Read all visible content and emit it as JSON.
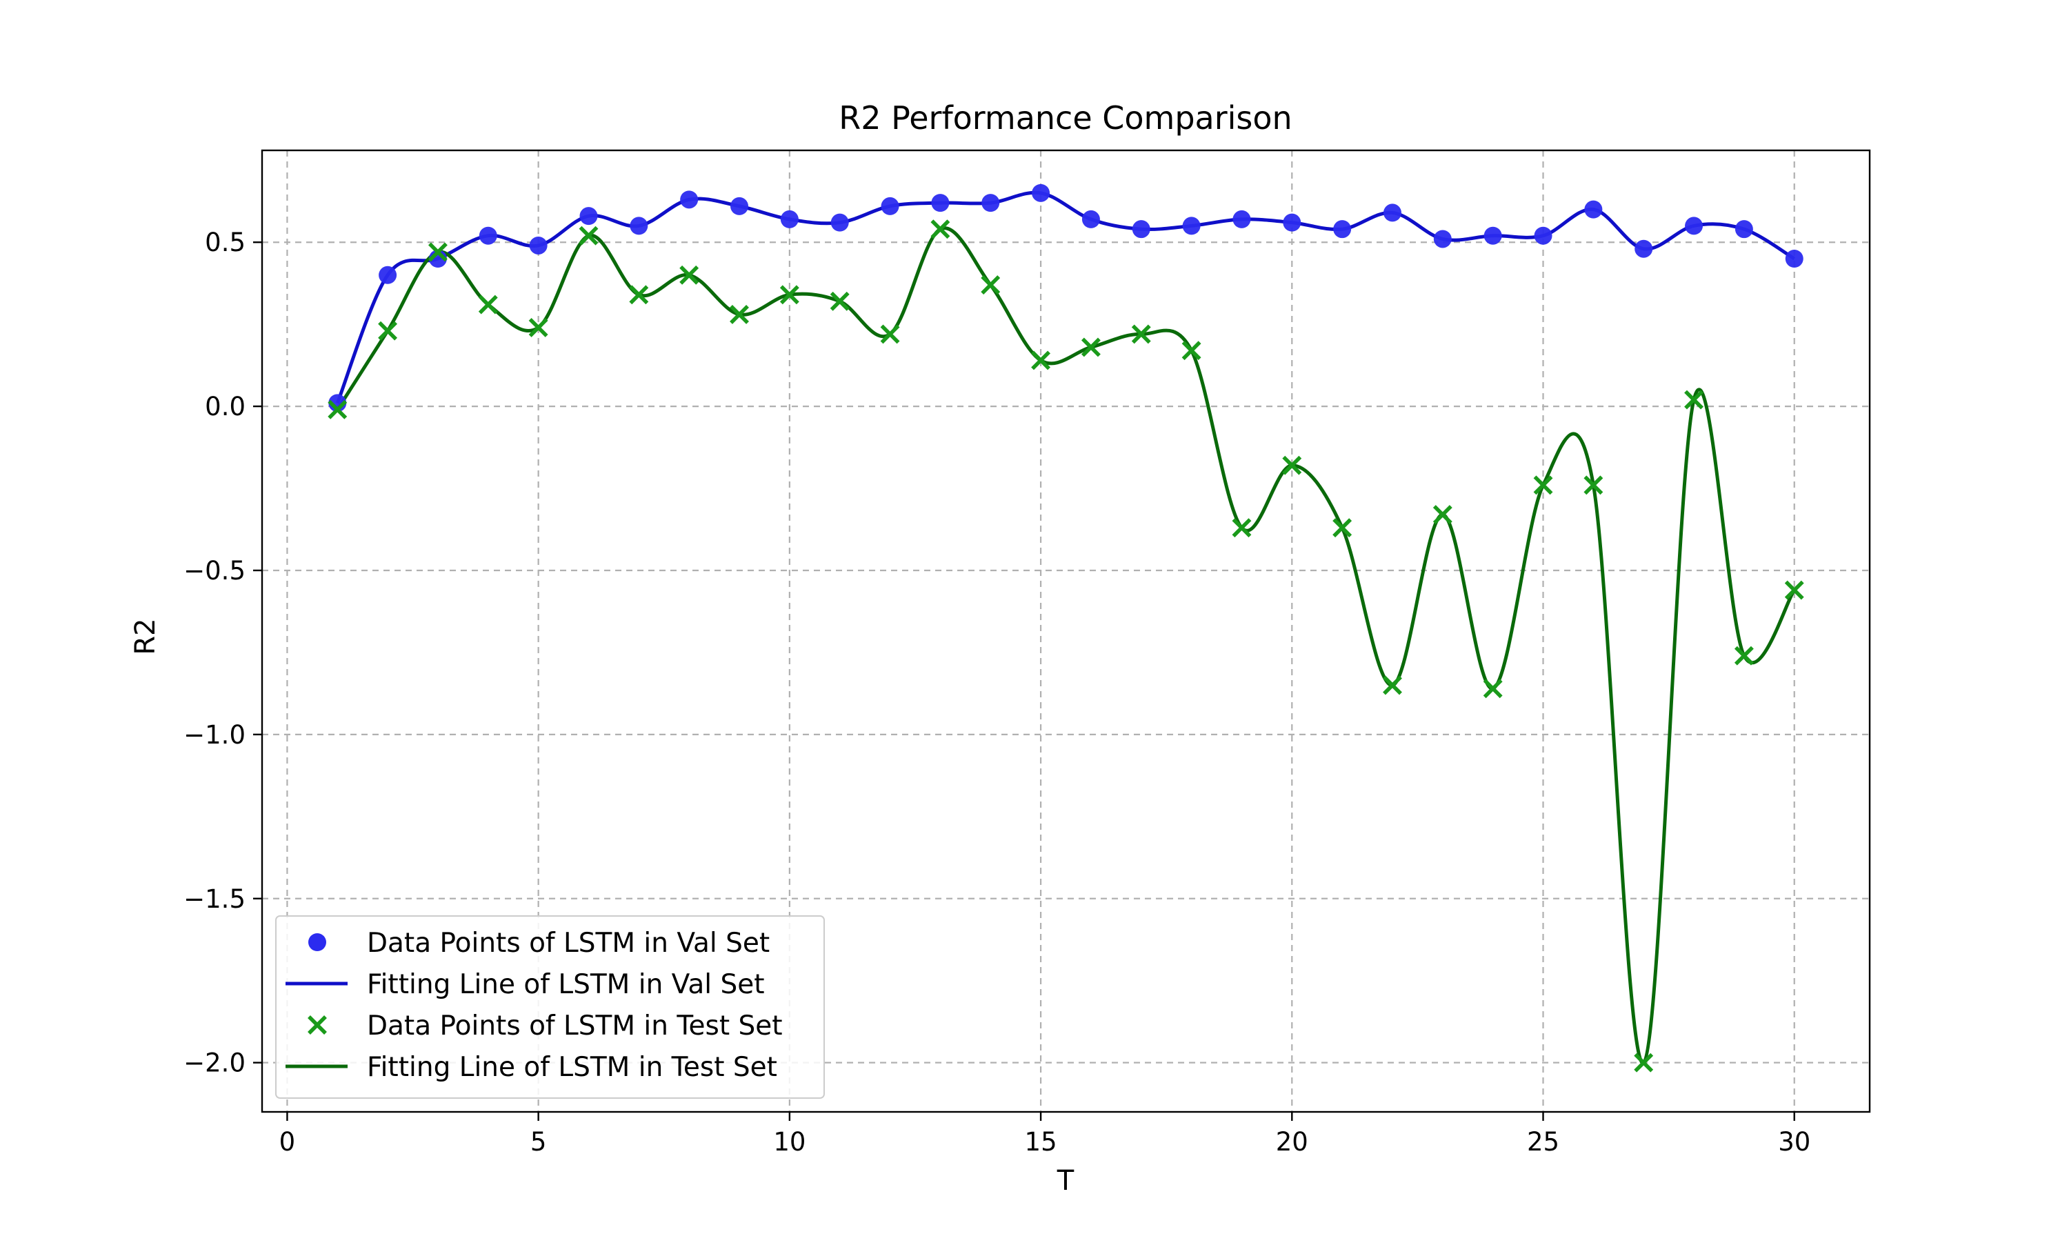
{
  "chart_data": {
    "type": "line",
    "title": "R2 Performance Comparison",
    "xlabel": "T",
    "ylabel": "R2",
    "xlim": [
      -0.5,
      31.5
    ],
    "ylim": [
      -2.15,
      0.78
    ],
    "xticks": [
      0,
      5,
      10,
      15,
      20,
      25,
      30
    ],
    "xtick_labels": [
      "0",
      "5",
      "10",
      "15",
      "20",
      "25",
      "30"
    ],
    "yticks": [
      0.5,
      0.0,
      -0.5,
      -1.0,
      -1.5,
      -2.0
    ],
    "ytick_labels": [
      "0.5",
      "0.0",
      "−0.5",
      "−1.0",
      "−1.5",
      "−2.0"
    ],
    "grid": true,
    "legend_position": "lower-left",
    "x": [
      1,
      2,
      3,
      4,
      5,
      6,
      7,
      8,
      9,
      10,
      11,
      12,
      13,
      14,
      15,
      16,
      17,
      18,
      19,
      20,
      21,
      22,
      23,
      24,
      25,
      26,
      27,
      28,
      29,
      30
    ],
    "series": [
      {
        "name": "Data Points of LSTM in Val Set",
        "kind": "scatter",
        "marker": "circle",
        "color": "#2b2bef",
        "values": [
          0.01,
          0.4,
          0.45,
          0.52,
          0.49,
          0.58,
          0.55,
          0.63,
          0.61,
          0.57,
          0.56,
          0.61,
          0.62,
          0.62,
          0.65,
          0.57,
          0.54,
          0.55,
          0.57,
          0.56,
          0.54,
          0.59,
          0.51,
          0.52,
          0.52,
          0.6,
          0.48,
          0.55,
          0.54,
          0.45
        ]
      },
      {
        "name": "Fitting Line of LSTM in Val Set",
        "kind": "line",
        "color": "#0f0fc8",
        "values": [
          0.01,
          0.4,
          0.45,
          0.52,
          0.49,
          0.58,
          0.55,
          0.63,
          0.61,
          0.57,
          0.56,
          0.61,
          0.62,
          0.62,
          0.65,
          0.57,
          0.54,
          0.55,
          0.57,
          0.56,
          0.54,
          0.59,
          0.51,
          0.52,
          0.52,
          0.6,
          0.48,
          0.55,
          0.54,
          0.45
        ]
      },
      {
        "name": "Data Points of LSTM in Test Set",
        "kind": "scatter",
        "marker": "x",
        "color": "#1a9a1a",
        "values": [
          -0.01,
          0.23,
          0.47,
          0.31,
          0.24,
          0.52,
          0.34,
          0.4,
          0.28,
          0.34,
          0.32,
          0.22,
          0.54,
          0.37,
          0.14,
          0.18,
          0.22,
          0.17,
          -0.37,
          -0.18,
          -0.37,
          -0.85,
          -0.33,
          -0.86,
          -0.24,
          -0.24,
          -2.0,
          0.02,
          -0.76,
          -0.56
        ]
      },
      {
        "name": "Fitting Line of LSTM in Test Set",
        "kind": "line",
        "color": "#0a6a0a",
        "values": [
          -0.01,
          0.23,
          0.47,
          0.31,
          0.24,
          0.52,
          0.34,
          0.4,
          0.28,
          0.34,
          0.32,
          0.22,
          0.54,
          0.37,
          0.14,
          0.18,
          0.22,
          0.17,
          -0.37,
          -0.18,
          -0.37,
          -0.85,
          -0.33,
          -0.86,
          -0.24,
          -0.24,
          -2.0,
          0.02,
          -0.76,
          -0.56
        ]
      }
    ]
  }
}
